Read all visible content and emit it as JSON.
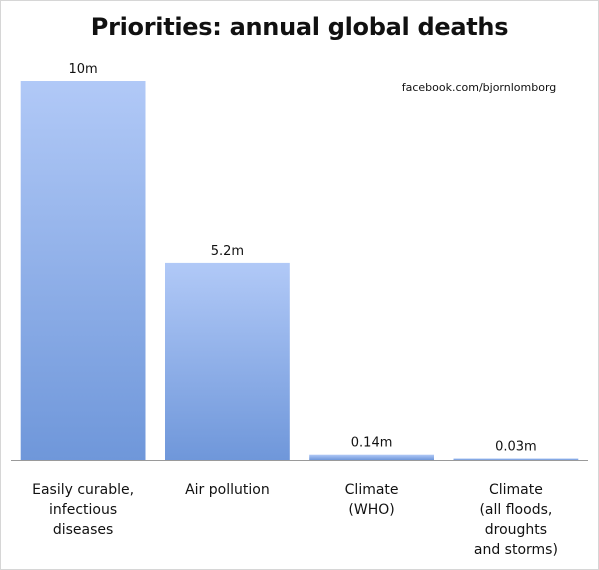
{
  "chart_data": {
    "type": "bar",
    "title": "Priorities: annual global deaths",
    "annotation": "facebook.com/bjornlomborg",
    "categories": [
      [
        "Easily curable,",
        "infectious",
        "diseases"
      ],
      [
        "Air pollution"
      ],
      [
        "Climate",
        "(WHO)"
      ],
      [
        "Climate",
        "(all floods,",
        "droughts",
        "and storms)"
      ]
    ],
    "values": [
      10,
      5.2,
      0.14,
      0.03
    ],
    "data_labels": [
      "10m",
      "5.2m",
      "0.14m",
      "0.03m"
    ],
    "unit": "million deaths per year",
    "ylim": [
      0,
      10
    ],
    "grid": false,
    "legend": "none",
    "colors": {
      "bar_top": "#b1c9f7",
      "bar_bottom": "#6f97da",
      "axis": "#9a9a9a"
    }
  }
}
